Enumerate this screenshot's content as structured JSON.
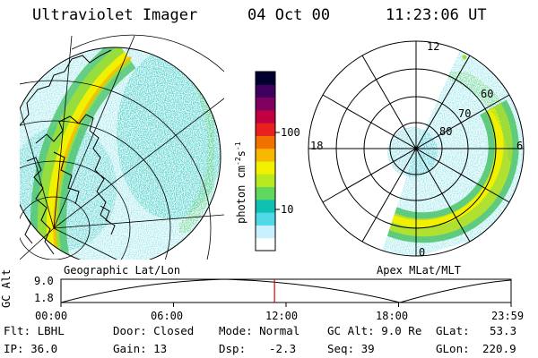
{
  "header": {
    "instrument": "Ultraviolet Imager",
    "date": "04 Oct 00",
    "time": "11:23:06 UT"
  },
  "colorbar": {
    "unit_label": "photon cm",
    "unit_sup1": "-2",
    "unit_mid": "s",
    "unit_sup2": "-1",
    "tick_100": "100",
    "tick_10": "10",
    "colors": [
      "#ffffff",
      "#c8f0ff",
      "#4fd8e8",
      "#10c0b0",
      "#60d860",
      "#b8e820",
      "#f0f000",
      "#f8b800",
      "#f07000",
      "#e82020",
      "#c00040",
      "#800060",
      "#400060",
      "#000030"
    ]
  },
  "left_panel": {
    "caption": "Geographic Lat/Lon"
  },
  "right_panel": {
    "caption": "Apex MLat/MLT",
    "mlt_12": "12",
    "mlt_18": "18",
    "mlt_6": "6",
    "mlt_0": "0",
    "lat_80": "80",
    "lat_70": "70",
    "lat_60": "60"
  },
  "altitude_plot": {
    "y_label": "GC Alt",
    "y_max": "9.0",
    "y_min": "1.8",
    "x_ticks": [
      "00:00",
      "06:00",
      "12:00",
      "18:00",
      "23:59"
    ],
    "current_time_fraction": 0.4744,
    "marker_color": "#e00000"
  },
  "info": {
    "filter": "Flt: LBHL",
    "ip": "IP: 36.0",
    "door": "Door: Closed",
    "gain": "Gain: 13",
    "mode": "Mode: Normal",
    "dsp": "Dsp:",
    "dsp_value": "-2.3",
    "gc_alt": "GC Alt: 9.0 Re",
    "seq": "Seq: 39",
    "glat": "GLat:",
    "glat_value": "53.3",
    "glon": "GLon:",
    "glon_value": "220.9"
  }
}
